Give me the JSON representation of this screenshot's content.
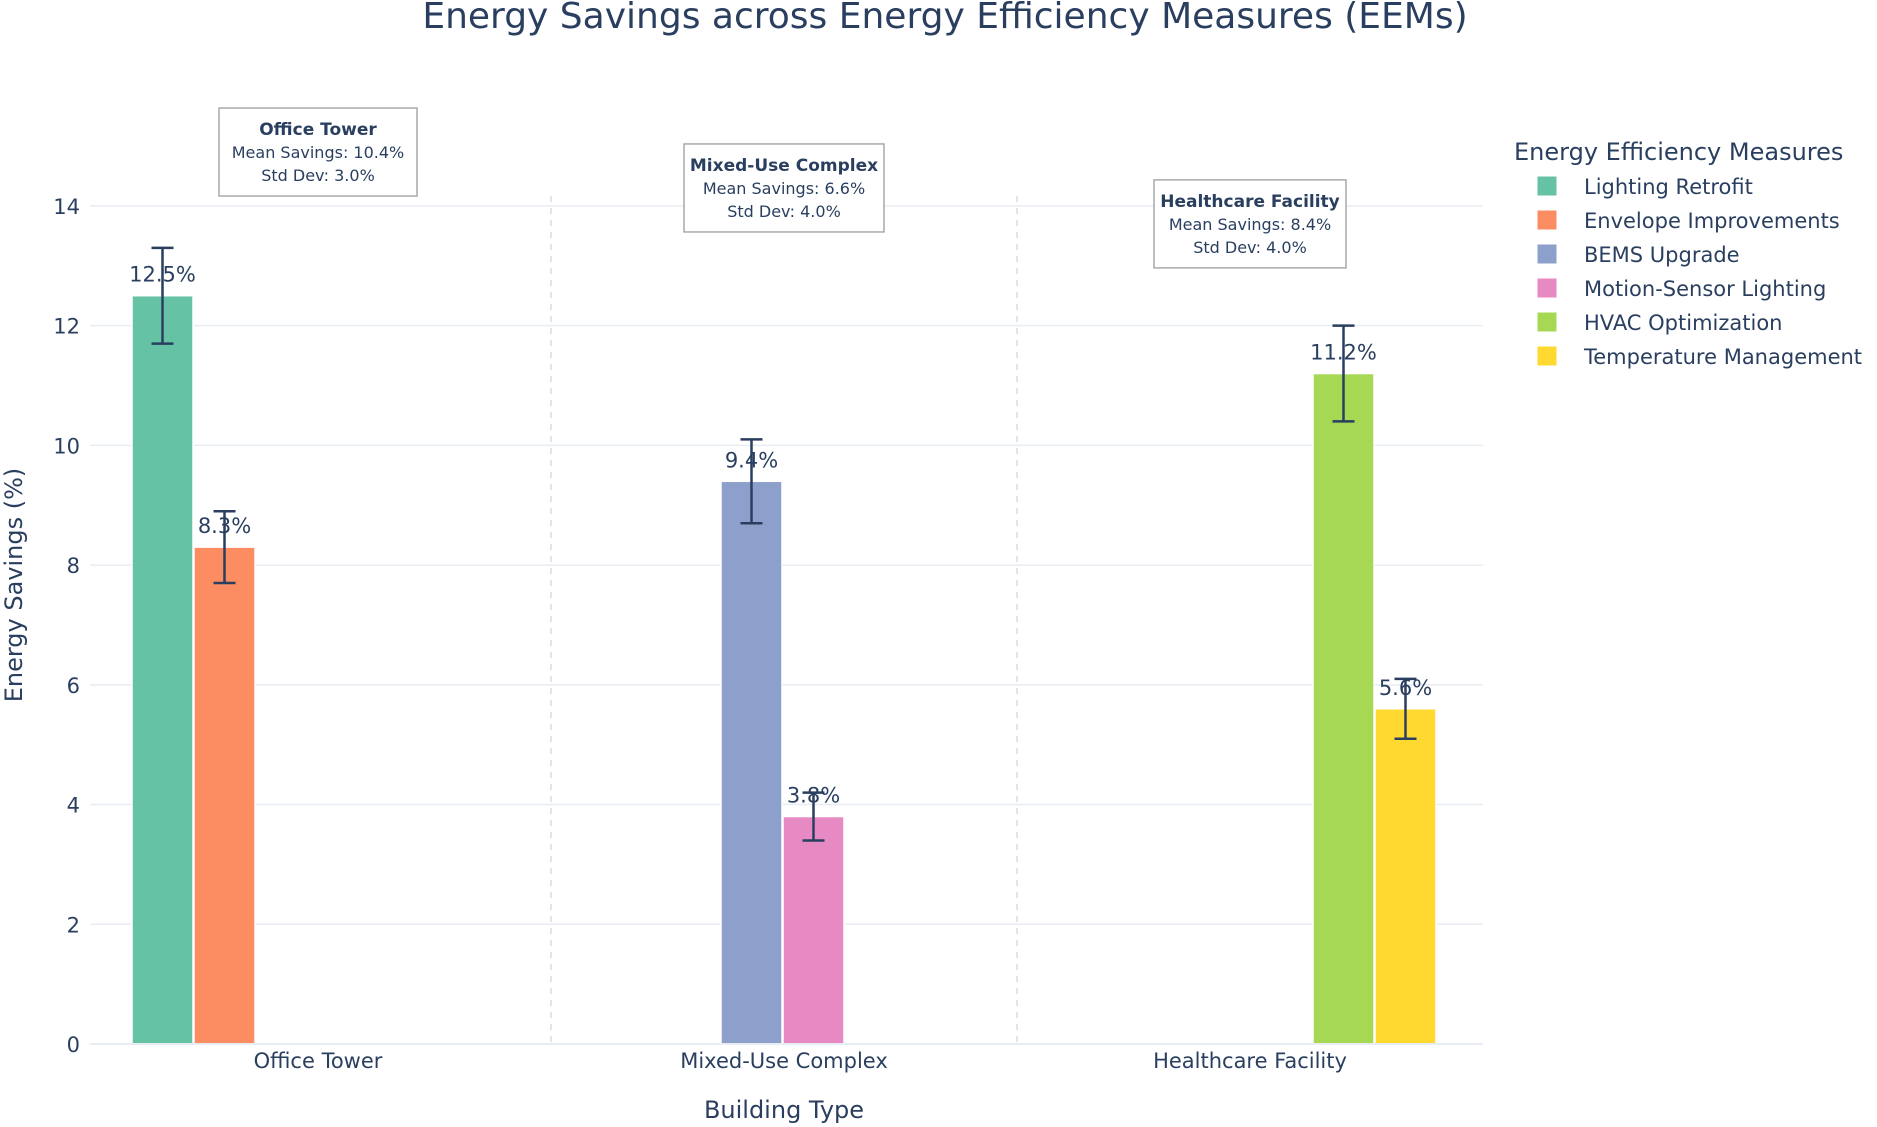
{
  "chart_data": {
    "type": "bar",
    "title": "Energy Savings across Energy Efficiency Measures (EEMs)",
    "xlabel": "Building Type",
    "ylabel": "Energy Savings (%)",
    "ylim": [
      0,
      14.6
    ],
    "yticks": [
      0,
      2,
      4,
      6,
      8,
      10,
      12,
      14
    ],
    "grid": true,
    "categories": [
      "Office Tower",
      "Mixed-Use Complex",
      "Healthcare Facility"
    ],
    "legend": {
      "title": "Energy Efficiency Measures",
      "placement": "top-right"
    },
    "series": [
      {
        "name": "Lighting Retrofit",
        "color": "#66c2a5",
        "category": "Office Tower",
        "slot": 0,
        "value": 12.5,
        "error": 0.8,
        "label": "12.5%"
      },
      {
        "name": "Envelope Improvements",
        "color": "#fc8d62",
        "category": "Office Tower",
        "slot": 1,
        "value": 8.3,
        "error": 0.6,
        "label": "8.3%"
      },
      {
        "name": "BEMS Upgrade",
        "color": "#8da0cb",
        "category": "Mixed-Use Complex",
        "slot": 2,
        "value": 9.4,
        "error": 0.7,
        "label": "9.4%"
      },
      {
        "name": "Motion-Sensor Lighting",
        "color": "#e78ac3",
        "category": "Mixed-Use Complex",
        "slot": 3,
        "value": 3.8,
        "error": 0.4,
        "label": "3.8%"
      },
      {
        "name": "HVAC Optimization",
        "color": "#a6d854",
        "category": "Healthcare Facility",
        "slot": 4,
        "value": 11.2,
        "error": 0.8,
        "label": "11.2%"
      },
      {
        "name": "Temperature Management",
        "color": "#ffd92f",
        "category": "Healthcare Facility",
        "slot": 5,
        "value": 5.6,
        "error": 0.5,
        "label": "5.6%"
      }
    ],
    "annotations": [
      {
        "category": "Office Tower",
        "title": "Office Tower",
        "mean": "Mean Savings: 10.4%",
        "std": "Std Dev: 3.0%",
        "y": 14.9
      },
      {
        "category": "Mixed-Use Complex",
        "title": "Mixed-Use Complex",
        "mean": "Mean Savings: 6.6%",
        "std": "Std Dev: 4.0%",
        "y": 14.3
      },
      {
        "category": "Healthcare Facility",
        "title": "Healthcare Facility",
        "mean": "Mean Savings: 8.4%",
        "std": "Std Dev: 4.0%",
        "y": 13.7
      }
    ],
    "separators_between_categories": true
  }
}
